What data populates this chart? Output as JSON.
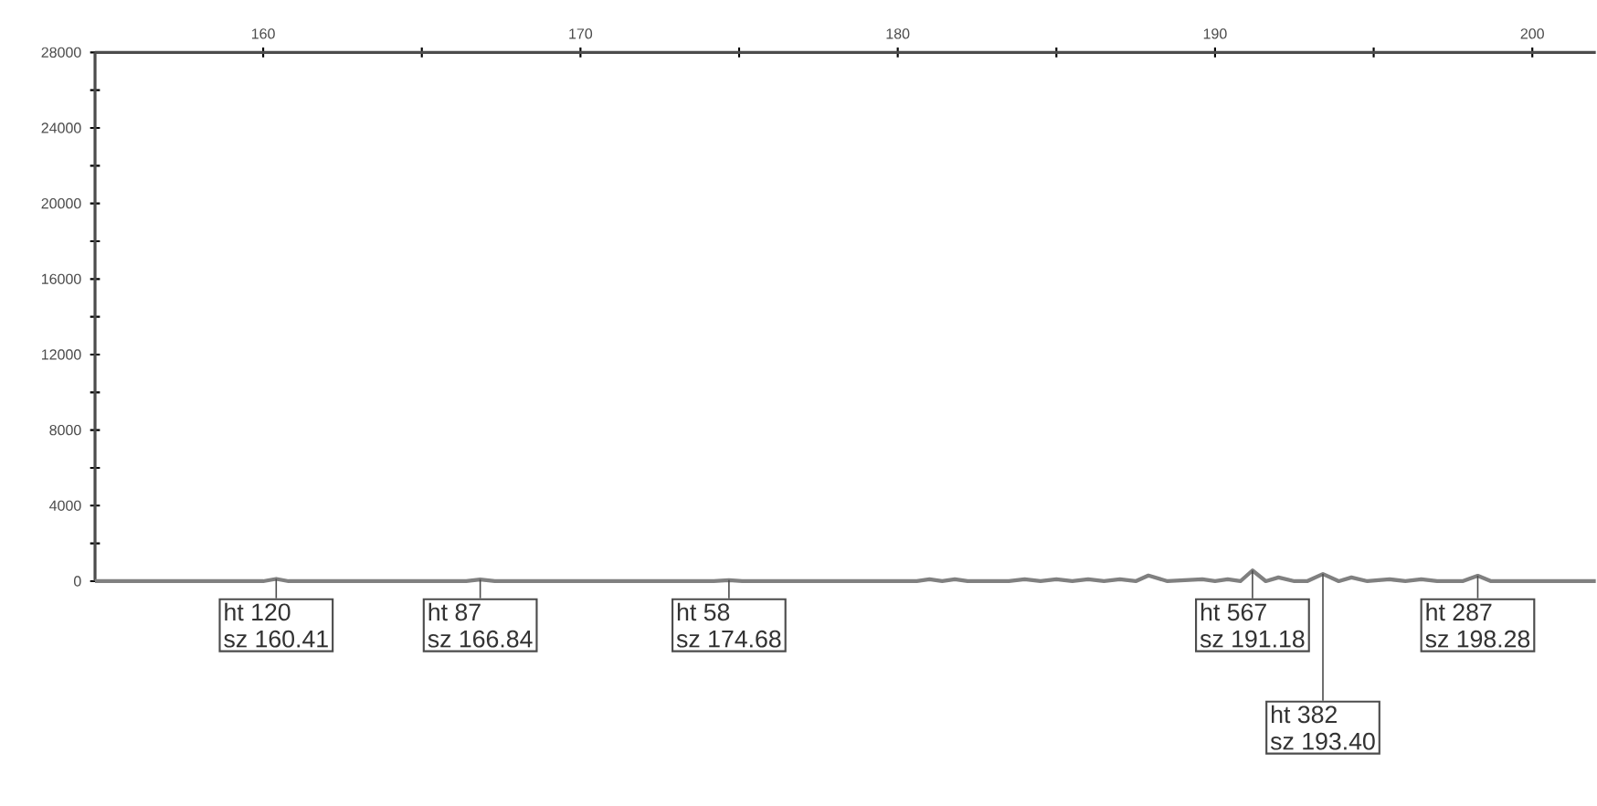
{
  "chart_data": {
    "type": "line",
    "x": [
      154.7,
      160.0,
      160.41,
      160.8,
      166.4,
      166.84,
      167.3,
      174.2,
      174.68,
      175.1,
      180.6,
      181.0,
      181.4,
      181.8,
      182.2,
      183.5,
      184.0,
      184.5,
      185.0,
      185.5,
      186.0,
      186.5,
      187.0,
      187.5,
      187.9,
      188.5,
      189.6,
      190.0,
      190.4,
      190.8,
      191.18,
      191.6,
      192.0,
      192.5,
      192.9,
      193.4,
      193.9,
      194.3,
      194.8,
      195.5,
      196.0,
      196.5,
      197.0,
      197.8,
      198.28,
      198.7,
      202.0
    ],
    "series": [
      {
        "color": "#808080",
        "values": [
          0,
          0,
          120,
          0,
          0,
          87,
          0,
          0,
          58,
          0,
          0,
          100,
          0,
          100,
          0,
          0,
          100,
          0,
          100,
          0,
          100,
          0,
          100,
          0,
          300,
          0,
          100,
          0,
          100,
          0,
          567,
          0,
          200,
          0,
          0,
          382,
          0,
          200,
          0,
          100,
          0,
          100,
          0,
          0,
          287,
          0,
          0
        ]
      }
    ],
    "xlim": [
      154.7,
      202.0
    ],
    "xticks": [
      160,
      {
        "value": 165,
        "label": null
      },
      170,
      {
        "value": 175,
        "label": null
      },
      180,
      {
        "value": 185,
        "label": null
      },
      190,
      {
        "value": 195,
        "label": null
      },
      200
    ],
    "ylim": [
      0,
      28000
    ],
    "yticks": [
      0,
      {
        "value": 2000,
        "label": null
      },
      4000,
      {
        "value": 6000,
        "label": null
      },
      8000,
      {
        "value": 10000,
        "label": null
      },
      12000,
      {
        "value": 14000,
        "label": null
      },
      16000,
      {
        "value": 18000,
        "label": null
      },
      20000,
      {
        "value": 22000,
        "label": null
      },
      24000,
      {
        "value": 26000,
        "label": null
      },
      28000
    ],
    "grid": false,
    "marker": "none",
    "line_style": "solid",
    "annotations": [
      {
        "text": "ht 120",
        "x": 160.41,
        "y": 120
      },
      "sz 160.41",
      {
        "text": "ht 87",
        "x": 166.84,
        "y": 87
      },
      "sz 166.84",
      {
        "text": "ht 58",
        "x": 174.68,
        "y": 58
      },
      "sz 174.68",
      {
        "text": "ht 567",
        "x": 191.18,
        "y": 567
      },
      "sz 191.18",
      {
        "text": "ht 382",
        "x": 193.4,
        "y": 382
      },
      "sz 193.40",
      {
        "text": "ht 287",
        "x": 198.28,
        "y": 287
      },
      "sz 198.28"
    ]
  }
}
